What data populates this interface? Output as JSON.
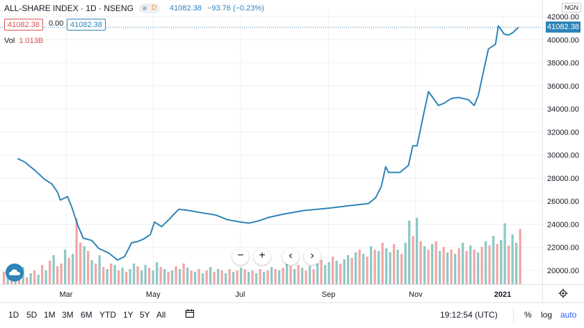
{
  "header": {
    "title": "ALL-SHARE INDEX · 1D · NSENG",
    "delayed_badge": "D",
    "last": "41082.38",
    "change": "−93.76 (−0.23%)",
    "currency": "NGN",
    "price_red": "41082.38",
    "price_zero": "0.00",
    "price_blue": "41082.38",
    "vol_label": "Vol",
    "vol_value": "1.013B",
    "last_price_tag": "41082.38"
  },
  "colors": {
    "line": "#2e83b7",
    "up_volume": "#8fc8c5",
    "down_volume": "#f1a7a6",
    "grid": "#eef0f3",
    "text": "#131722"
  },
  "toolbar": {
    "ranges": [
      "1D",
      "5D",
      "1M",
      "3M",
      "6M",
      "YTD",
      "1Y",
      "5Y",
      "All"
    ],
    "time": "19:12:54 (UTC)",
    "percent": "%",
    "log": "log",
    "auto": "auto"
  },
  "nav": {
    "zoom_out": "−",
    "zoom_in": "+",
    "scroll_left": "‹",
    "scroll_right": "›"
  },
  "chart_data": {
    "type": "line",
    "title": "ALL-SHARE INDEX · 1D · NSENG",
    "ylim": [
      19000,
      42000
    ],
    "y_ticks": [
      "42000.00",
      "40000.00",
      "38000.00",
      "36000.00",
      "34000.00",
      "32000.00",
      "30000.00",
      "28000.00",
      "26000.00",
      "24000.00",
      "22000.00",
      "20000.00"
    ],
    "x_ticks": [
      "Mar",
      "May",
      "Jul",
      "Sep",
      "Nov",
      "2021"
    ],
    "x_tick_dates": [
      "2020-03-01",
      "2020-05-01",
      "2020-07-01",
      "2020-09-01",
      "2020-11-01",
      "2021-01-01"
    ],
    "xlim": [
      "2020-01-26",
      "2021-01-24"
    ],
    "series": [
      {
        "values": [
          [
            "2020-01-27",
            29700
          ],
          [
            "2020-02-01",
            29400
          ],
          [
            "2020-02-08",
            28700
          ],
          [
            "2020-02-15",
            27900
          ],
          [
            "2020-02-20",
            27500
          ],
          [
            "2020-02-24",
            26800
          ],
          [
            "2020-02-26",
            26100
          ],
          [
            "2020-03-02",
            26400
          ],
          [
            "2020-03-05",
            25500
          ],
          [
            "2020-03-09",
            24000
          ],
          [
            "2020-03-13",
            22800
          ],
          [
            "2020-03-19",
            22600
          ],
          [
            "2020-03-24",
            21900
          ],
          [
            "2020-03-31",
            21500
          ],
          [
            "2020-04-06",
            20900
          ],
          [
            "2020-04-11",
            21200
          ],
          [
            "2020-04-16",
            22400
          ],
          [
            "2020-04-20",
            22500
          ],
          [
            "2020-04-24",
            22700
          ],
          [
            "2020-04-29",
            23100
          ],
          [
            "2020-05-02",
            24200
          ],
          [
            "2020-05-07",
            23800
          ],
          [
            "2020-05-12",
            24400
          ],
          [
            "2020-05-19",
            25300
          ],
          [
            "2020-05-26",
            25200
          ],
          [
            "2020-06-04",
            25000
          ],
          [
            "2020-06-14",
            24800
          ],
          [
            "2020-06-22",
            24400
          ],
          [
            "2020-07-01",
            24200
          ],
          [
            "2020-07-07",
            24100
          ],
          [
            "2020-07-14",
            24300
          ],
          [
            "2020-07-21",
            24600
          ],
          [
            "2020-08-01",
            24900
          ],
          [
            "2020-08-15",
            25200
          ],
          [
            "2020-09-01",
            25400
          ],
          [
            "2020-09-15",
            25600
          ],
          [
            "2020-09-29",
            25800
          ],
          [
            "2020-10-04",
            26300
          ],
          [
            "2020-10-08",
            27300
          ],
          [
            "2020-10-11",
            29000
          ],
          [
            "2020-10-13",
            28500
          ],
          [
            "2020-10-21",
            28500
          ],
          [
            "2020-10-27",
            29100
          ],
          [
            "2020-10-30",
            30800
          ],
          [
            "2020-11-02",
            30800
          ],
          [
            "2020-11-06",
            33200
          ],
          [
            "2020-11-10",
            35500
          ],
          [
            "2020-11-13",
            35000
          ],
          [
            "2020-11-17",
            34300
          ],
          [
            "2020-11-21",
            34500
          ],
          [
            "2020-11-26",
            34900
          ],
          [
            "2020-12-01",
            35000
          ],
          [
            "2020-12-08",
            34800
          ],
          [
            "2020-12-12",
            34300
          ],
          [
            "2020-12-15",
            35200
          ],
          [
            "2020-12-19",
            37500
          ],
          [
            "2020-12-22",
            39200
          ],
          [
            "2020-12-27",
            39600
          ],
          [
            "2020-12-29",
            41200
          ],
          [
            "2021-01-02",
            40500
          ],
          [
            "2021-01-05",
            40400
          ],
          [
            "2021-01-08",
            40600
          ],
          [
            "2021-01-12",
            41082.38
          ]
        ]
      }
    ],
    "volume": {
      "ylim_fraction_of_pane": [
        0,
        1
      ],
      "scale_max": 1.0,
      "note_values": "relative",
      "bars": [
        [
          0.18,
          "d"
        ],
        [
          0.22,
          "u"
        ],
        [
          0.15,
          "d"
        ],
        [
          0.2,
          "u"
        ],
        [
          0.12,
          "d"
        ],
        [
          0.25,
          "u"
        ],
        [
          0.1,
          "d"
        ],
        [
          0.16,
          "u"
        ],
        [
          0.2,
          "d"
        ],
        [
          0.14,
          "u"
        ],
        [
          0.28,
          "d"
        ],
        [
          0.2,
          "u"
        ],
        [
          0.34,
          "d"
        ],
        [
          0.42,
          "u"
        ],
        [
          0.26,
          "d"
        ],
        [
          0.3,
          "d"
        ],
        [
          0.5,
          "u"
        ],
        [
          0.38,
          "d"
        ],
        [
          0.44,
          "u"
        ],
        [
          0.95,
          "d"
        ],
        [
          0.6,
          "d"
        ],
        [
          0.55,
          "u"
        ],
        [
          0.48,
          "d"
        ],
        [
          0.35,
          "u"
        ],
        [
          0.3,
          "d"
        ],
        [
          0.42,
          "u"
        ],
        [
          0.25,
          "d"
        ],
        [
          0.22,
          "u"
        ],
        [
          0.3,
          "d"
        ],
        [
          0.28,
          "u"
        ],
        [
          0.2,
          "d"
        ],
        [
          0.24,
          "u"
        ],
        [
          0.18,
          "d"
        ],
        [
          0.22,
          "u"
        ],
        [
          0.3,
          "u"
        ],
        [
          0.26,
          "d"
        ],
        [
          0.2,
          "u"
        ],
        [
          0.28,
          "u"
        ],
        [
          0.24,
          "d"
        ],
        [
          0.2,
          "u"
        ],
        [
          0.32,
          "u"
        ],
        [
          0.25,
          "d"
        ],
        [
          0.22,
          "u"
        ],
        [
          0.18,
          "d"
        ],
        [
          0.2,
          "u"
        ],
        [
          0.26,
          "d"
        ],
        [
          0.22,
          "u"
        ],
        [
          0.3,
          "d"
        ],
        [
          0.24,
          "u"
        ],
        [
          0.2,
          "d"
        ],
        [
          0.18,
          "u"
        ],
        [
          0.22,
          "d"
        ],
        [
          0.16,
          "u"
        ],
        [
          0.2,
          "d"
        ],
        [
          0.25,
          "u"
        ],
        [
          0.18,
          "d"
        ],
        [
          0.22,
          "u"
        ],
        [
          0.2,
          "d"
        ],
        [
          0.16,
          "u"
        ],
        [
          0.22,
          "d"
        ],
        [
          0.18,
          "u"
        ],
        [
          0.2,
          "d"
        ],
        [
          0.24,
          "u"
        ],
        [
          0.22,
          "d"
        ],
        [
          0.18,
          "u"
        ],
        [
          0.2,
          "d"
        ],
        [
          0.16,
          "u"
        ],
        [
          0.22,
          "d"
        ],
        [
          0.18,
          "u"
        ],
        [
          0.2,
          "d"
        ],
        [
          0.25,
          "u"
        ],
        [
          0.22,
          "d"
        ],
        [
          0.2,
          "u"
        ],
        [
          0.24,
          "d"
        ],
        [
          0.3,
          "u"
        ],
        [
          0.26,
          "d"
        ],
        [
          0.22,
          "u"
        ],
        [
          0.28,
          "d"
        ],
        [
          0.24,
          "u"
        ],
        [
          0.2,
          "d"
        ],
        [
          0.26,
          "u"
        ],
        [
          0.22,
          "d"
        ],
        [
          0.3,
          "u"
        ],
        [
          0.35,
          "d"
        ],
        [
          0.28,
          "u"
        ],
        [
          0.32,
          "u"
        ],
        [
          0.4,
          "d"
        ],
        [
          0.34,
          "u"
        ],
        [
          0.3,
          "d"
        ],
        [
          0.36,
          "u"
        ],
        [
          0.42,
          "u"
        ],
        [
          0.38,
          "d"
        ],
        [
          0.46,
          "u"
        ],
        [
          0.5,
          "d"
        ],
        [
          0.44,
          "u"
        ],
        [
          0.4,
          "d"
        ],
        [
          0.55,
          "u"
        ],
        [
          0.5,
          "d"
        ],
        [
          0.48,
          "u"
        ],
        [
          0.6,
          "d"
        ],
        [
          0.52,
          "u"
        ],
        [
          0.46,
          "u"
        ],
        [
          0.58,
          "d"
        ],
        [
          0.5,
          "u"
        ],
        [
          0.44,
          "d"
        ],
        [
          0.6,
          "u"
        ],
        [
          0.92,
          "u"
        ],
        [
          0.7,
          "d"
        ],
        [
          0.96,
          "u"
        ],
        [
          0.62,
          "d"
        ],
        [
          0.55,
          "u"
        ],
        [
          0.5,
          "d"
        ],
        [
          0.58,
          "u"
        ],
        [
          0.62,
          "d"
        ],
        [
          0.48,
          "u"
        ],
        [
          0.54,
          "d"
        ],
        [
          0.46,
          "u"
        ],
        [
          0.5,
          "d"
        ],
        [
          0.44,
          "u"
        ],
        [
          0.52,
          "d"
        ],
        [
          0.6,
          "u"
        ],
        [
          0.48,
          "d"
        ],
        [
          0.56,
          "u"
        ],
        [
          0.5,
          "d"
        ],
        [
          0.46,
          "u"
        ],
        [
          0.54,
          "d"
        ],
        [
          0.62,
          "u"
        ],
        [
          0.56,
          "d"
        ],
        [
          0.7,
          "u"
        ],
        [
          0.58,
          "d"
        ],
        [
          0.64,
          "u"
        ],
        [
          0.88,
          "u"
        ],
        [
          0.56,
          "d"
        ],
        [
          0.72,
          "u"
        ],
        [
          0.6,
          "u"
        ],
        [
          0.8,
          "d"
        ]
      ]
    },
    "xlabel": "",
    "ylabel": "",
    "grid": true,
    "legend": "none"
  }
}
